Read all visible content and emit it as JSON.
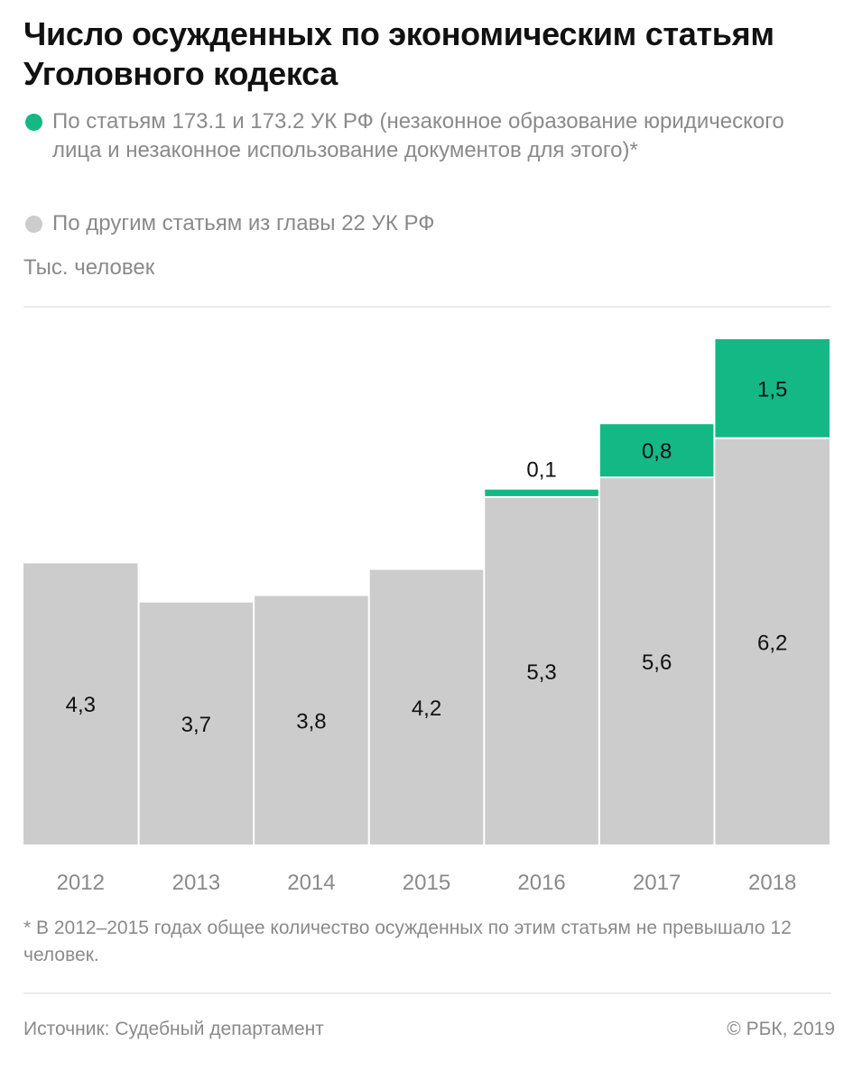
{
  "chart_data": {
    "type": "bar",
    "stacked": true,
    "title": "Число осужденных по экономическим статьям Уголовного кодекса",
    "unit_label": "Тыс. человек",
    "categories": [
      "2012",
      "2013",
      "2014",
      "2015",
      "2016",
      "2017",
      "2018"
    ],
    "series": [
      {
        "name": "По другим статьям из главы 22 УК РФ",
        "color": "#cccccc",
        "values": [
          4.3,
          3.7,
          3.8,
          4.2,
          5.3,
          5.6,
          6.2
        ],
        "labels": [
          "4,3",
          "3,7",
          "3,8",
          "4,2",
          "5,3",
          "5,6",
          "6,2"
        ]
      },
      {
        "name": "По статьям 173.1 и 173.2 УК РФ (незаконное образование юридического лица и незаконное использование документов для этого)*",
        "color": "#14b884",
        "values": [
          null,
          null,
          null,
          null,
          0.1,
          0.8,
          1.5
        ],
        "labels": [
          "",
          "",
          "",
          "",
          "0,1",
          "0,8",
          "1,5"
        ]
      }
    ],
    "ylim": [
      0,
      7.7
    ],
    "grid": false,
    "legend_position": "top-left",
    "footnote": "* В 2012–2015 годах общее количество осужденных по этим статьям не превышало 12 человек.",
    "source": "Источник: Судебный департамент",
    "copyright": "© РБК, 2019"
  }
}
